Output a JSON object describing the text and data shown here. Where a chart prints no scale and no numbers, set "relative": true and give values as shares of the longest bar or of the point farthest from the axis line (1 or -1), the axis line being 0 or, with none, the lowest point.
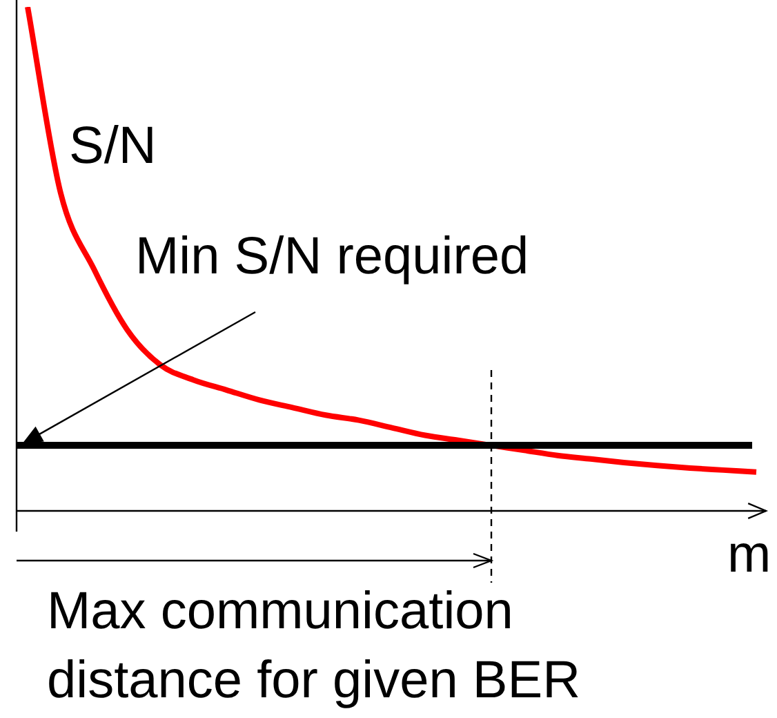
{
  "chart_data": {
    "type": "line",
    "relative": true,
    "ylabel": "S/N",
    "xlabel": "m",
    "marker": "none",
    "categories": [
      null,
      null,
      null,
      null,
      null,
      null,
      null,
      null,
      null,
      null,
      null,
      null,
      null,
      null,
      null,
      null,
      null,
      null,
      null,
      null,
      null,
      null,
      null
    ],
    "series": [
      {
        "color": "#ff0000",
        "values": [
          1.0,
          0.63,
          0.48,
          0.36,
          0.29,
          0.26,
          0.24,
          0.22,
          0.205,
          0.19,
          0.18,
          0.165,
          0.15,
          0.14,
          0.13,
          0.12,
          0.11,
          0.103,
          0.096,
          0.09,
          0.085,
          0.081,
          0.077
        ]
      }
    ],
    "ref_lines": [
      {
        "axis": "y",
        "value": 0.13,
        "label": "Min S/N required",
        "color": "#000000"
      }
    ],
    "annotations": [
      "Max communication distance for given BER"
    ]
  }
}
